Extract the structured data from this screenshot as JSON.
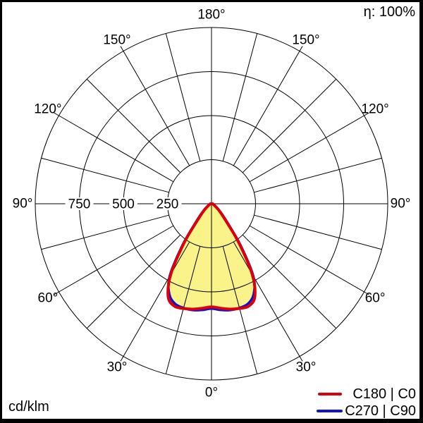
{
  "header": {
    "efficiency": "η: 100%"
  },
  "footer": {
    "unit": "cd/klm"
  },
  "legend": {
    "items": [
      {
        "label": "C180 | C0",
        "color": "#dc000b"
      },
      {
        "label": "C270 | C90",
        "color": "#1212ce"
      }
    ]
  },
  "chart_data": {
    "type": "polar",
    "subtype": "luminous-intensity-distribution",
    "unit": "cd/klm",
    "efficiency_label": "η: 100%",
    "angle_label_positions_deg": [
      0,
      30,
      60,
      90,
      120,
      150,
      180
    ],
    "angle_label_suffix": "°",
    "grid": {
      "spoke_step_deg": 15,
      "radial_circles": [
        250,
        500,
        750,
        1000
      ],
      "radial_tick_values": [
        750,
        500,
        250
      ],
      "r_max": 1000,
      "inner_circle_value": 250,
      "grid_color": "#000000"
    },
    "gamma_deg": [
      0,
      5,
      10,
      15,
      20,
      25,
      30,
      35,
      40,
      45,
      50,
      55,
      60,
      65,
      70,
      75,
      80,
      85,
      90
    ],
    "symmetric": true,
    "series": [
      {
        "name": "C180 | C0",
        "color": "#dc000b",
        "fill": "#f9f38a",
        "stroke_width": 4,
        "values_cd_per_klm": [
          585,
          595,
          607,
          615,
          618,
          582,
          462,
          270,
          128,
          76,
          48,
          30,
          20,
          14,
          11,
          9,
          8,
          7,
          6
        ]
      },
      {
        "name": "C270 | C90",
        "color": "#1212ce",
        "fill": null,
        "stroke_width": 3.5,
        "values_cd_per_klm": [
          595,
          605,
          613,
          612,
          604,
          566,
          474,
          286,
          142,
          85,
          53,
          33,
          21,
          15,
          11,
          9,
          8,
          7,
          6
        ]
      }
    ]
  }
}
